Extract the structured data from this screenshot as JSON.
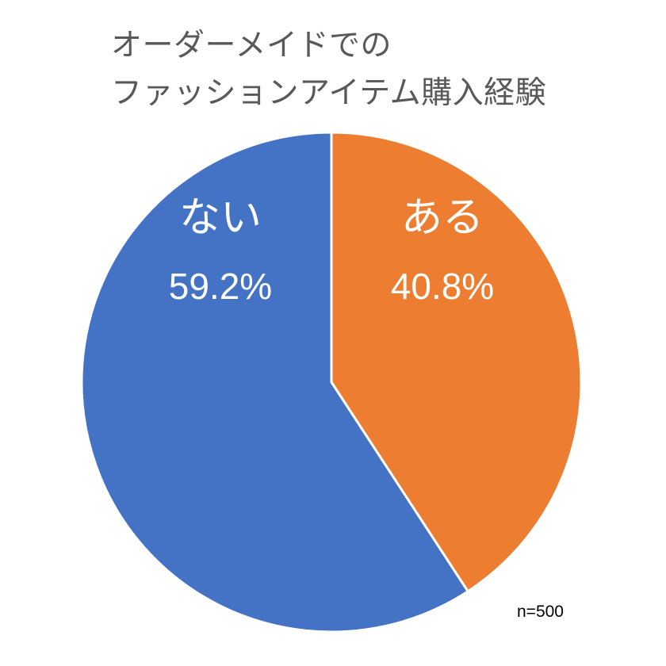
{
  "chart_data": {
    "type": "pie",
    "title": [
      "オーダーメイドでの",
      "ファッションアイテム購入経験"
    ],
    "slices": [
      {
        "label": "ある",
        "value": 40.8,
        "value_label": "40.8%",
        "color": "#ED7D31"
      },
      {
        "label": "ない",
        "value": 59.2,
        "value_label": "59.2%",
        "color": "#4472C4"
      }
    ],
    "start": "12 o'clock, clockwise",
    "label_color": "#FFFFFF",
    "note": "n=500"
  }
}
